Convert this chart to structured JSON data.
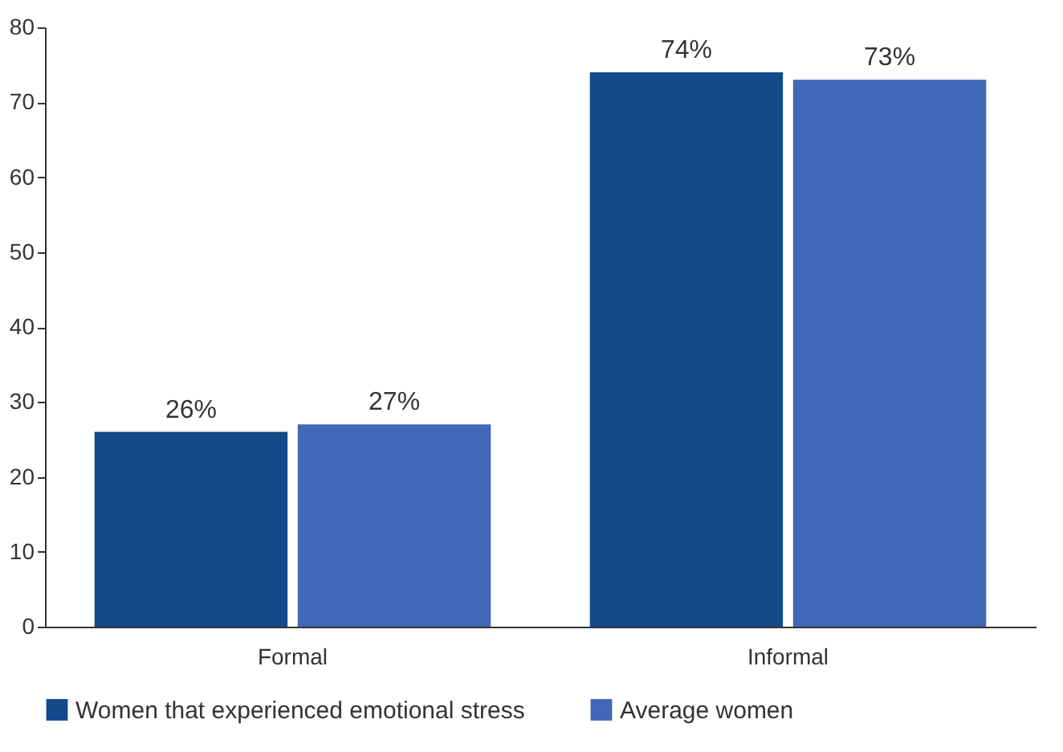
{
  "chart_data": {
    "type": "bar",
    "categories": [
      "Formal",
      "Informal"
    ],
    "series": [
      {
        "name": "Women that experienced emotional stress",
        "color": "#124a8a",
        "values": [
          26,
          74
        ],
        "value_labels": [
          "26%",
          "74%"
        ]
      },
      {
        "name": "Average women",
        "color": "#4266b8",
        "values": [
          27,
          73
        ],
        "value_labels": [
          "27%",
          "73%"
        ]
      }
    ],
    "ylim": [
      0,
      80
    ],
    "yticks": [
      0,
      10,
      20,
      30,
      40,
      50,
      60,
      70,
      80
    ],
    "grid": false,
    "legend": "bottom"
  }
}
